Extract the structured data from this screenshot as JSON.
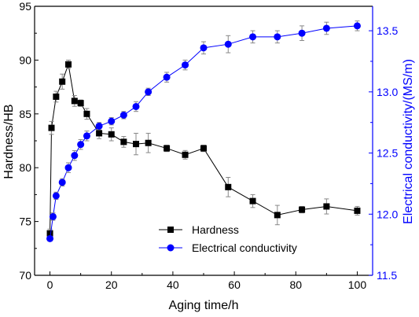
{
  "chart_data": {
    "type": "line",
    "xlabel": "Aging time/h",
    "ylabel_left": "Hardness/HB",
    "ylabel_right": "Electrical conductivity/(MS/m)",
    "xlim": [
      -5,
      105
    ],
    "ylim_left": [
      70,
      95
    ],
    "ylim_right": [
      11.5,
      13.7
    ],
    "x_ticks": [
      "0",
      "20",
      "40",
      "60",
      "80",
      "100"
    ],
    "y_left_ticks": [
      "70",
      "75",
      "80",
      "85",
      "90",
      "95"
    ],
    "y_right_ticks": [
      "11.5",
      "12.0",
      "12.5",
      "13.0",
      "13.5"
    ],
    "grid": false,
    "legend_position": "bottom-center",
    "series": [
      {
        "name": "Hardness",
        "axis": "left",
        "color": "#000000",
        "marker": "square",
        "points": [
          {
            "x": 0,
            "y": 73.9,
            "err": 0.4
          },
          {
            "x": 0.5,
            "y": 83.7,
            "err": 0.6
          },
          {
            "x": 2,
            "y": 86.6,
            "err": 0.5
          },
          {
            "x": 4,
            "y": 88.0,
            "err": 0.7
          },
          {
            "x": 6,
            "y": 89.6,
            "err": 0.4
          },
          {
            "x": 8,
            "y": 86.2,
            "err": 0.5
          },
          {
            "x": 10,
            "y": 86.0,
            "err": 0.3
          },
          {
            "x": 12,
            "y": 85.0,
            "err": 0.5
          },
          {
            "x": 16,
            "y": 83.2,
            "err": 0.5
          },
          {
            "x": 20,
            "y": 83.1,
            "err": 0.6
          },
          {
            "x": 24,
            "y": 82.4,
            "err": 0.5
          },
          {
            "x": 28,
            "y": 82.2,
            "err": 1.0
          },
          {
            "x": 32,
            "y": 82.3,
            "err": 0.9
          },
          {
            "x": 38,
            "y": 81.8,
            "err": 0.3
          },
          {
            "x": 44,
            "y": 81.2,
            "err": 0.4
          },
          {
            "x": 50,
            "y": 81.8,
            "err": 0.3
          },
          {
            "x": 58,
            "y": 78.2,
            "err": 0.9
          },
          {
            "x": 66,
            "y": 76.9,
            "err": 0.6
          },
          {
            "x": 74,
            "y": 75.6,
            "err": 0.9
          },
          {
            "x": 82,
            "y": 76.1,
            "err": 0.3
          },
          {
            "x": 90,
            "y": 76.4,
            "err": 0.7
          },
          {
            "x": 100,
            "y": 76.0,
            "err": 0.4
          }
        ]
      },
      {
        "name": "Electrical conductivity",
        "axis": "right",
        "color": "#0000ff",
        "marker": "circle",
        "points": [
          {
            "x": 0,
            "y": 11.8,
            "err": 0.02
          },
          {
            "x": 1,
            "y": 11.98,
            "err": 0.03
          },
          {
            "x": 2,
            "y": 12.15,
            "err": 0.03
          },
          {
            "x": 4,
            "y": 12.26,
            "err": 0.03
          },
          {
            "x": 6,
            "y": 12.38,
            "err": 0.04
          },
          {
            "x": 8,
            "y": 12.48,
            "err": 0.04
          },
          {
            "x": 10,
            "y": 12.57,
            "err": 0.04
          },
          {
            "x": 12,
            "y": 12.64,
            "err": 0.04
          },
          {
            "x": 16,
            "y": 12.72,
            "err": 0.03
          },
          {
            "x": 20,
            "y": 12.76,
            "err": 0.03
          },
          {
            "x": 24,
            "y": 12.81,
            "err": 0.03
          },
          {
            "x": 28,
            "y": 12.88,
            "err": 0.04
          },
          {
            "x": 32,
            "y": 13.0,
            "err": 0.03
          },
          {
            "x": 38,
            "y": 13.12,
            "err": 0.04
          },
          {
            "x": 44,
            "y": 13.22,
            "err": 0.04
          },
          {
            "x": 50,
            "y": 13.36,
            "err": 0.05
          },
          {
            "x": 58,
            "y": 13.39,
            "err": 0.07
          },
          {
            "x": 66,
            "y": 13.45,
            "err": 0.05
          },
          {
            "x": 74,
            "y": 13.45,
            "err": 0.05
          },
          {
            "x": 82,
            "y": 13.48,
            "err": 0.06
          },
          {
            "x": 90,
            "y": 13.52,
            "err": 0.05
          },
          {
            "x": 100,
            "y": 13.54,
            "err": 0.04
          }
        ]
      }
    ]
  }
}
